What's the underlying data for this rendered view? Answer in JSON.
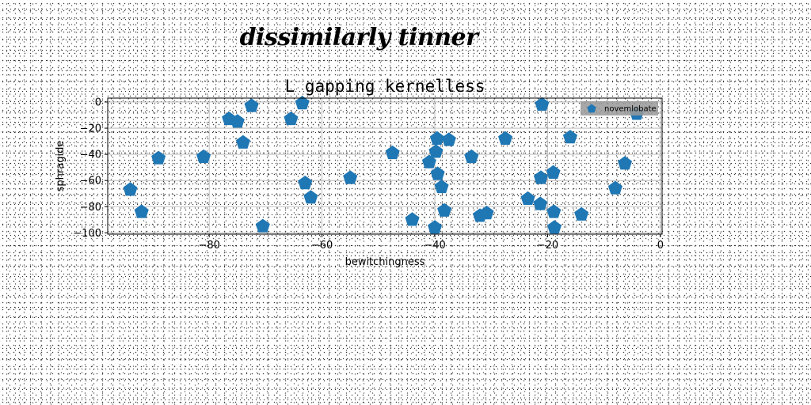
{
  "suptitle": "dissimilarly tinner",
  "chart_data": {
    "type": "scatter",
    "title": "L gapping kernelless",
    "xlabel": "bewitchingness",
    "ylabel": "sphragide",
    "xlim": [
      -98,
      0.3
    ],
    "ylim": [
      -101,
      3
    ],
    "xticks": [
      -80,
      -60,
      -40,
      -20,
      0
    ],
    "yticks": [
      0,
      -20,
      -40,
      -60,
      -80,
      -100
    ],
    "grid": true,
    "marker": "pentagon",
    "legend_position": "top-right",
    "series": [
      {
        "name": "novemlobate",
        "color": "#1f77b4",
        "points": [
          {
            "x": -94,
            "y": -67
          },
          {
            "x": -92,
            "y": -84
          },
          {
            "x": -89,
            "y": -43
          },
          {
            "x": -81,
            "y": -42
          },
          {
            "x": -76.5,
            "y": -13
          },
          {
            "x": -75,
            "y": -15
          },
          {
            "x": -74,
            "y": -31
          },
          {
            "x": -72.5,
            "y": -3
          },
          {
            "x": -70.5,
            "y": -95
          },
          {
            "x": -65.5,
            "y": -13
          },
          {
            "x": -63.5,
            "y": -1
          },
          {
            "x": -63,
            "y": -62
          },
          {
            "x": -62,
            "y": -73
          },
          {
            "x": -55,
            "y": -58
          },
          {
            "x": -47.5,
            "y": -39
          },
          {
            "x": -44,
            "y": -90
          },
          {
            "x": -41,
            "y": -46
          },
          {
            "x": -40,
            "y": -96
          },
          {
            "x": -39.8,
            "y": -38
          },
          {
            "x": -39.6,
            "y": -28
          },
          {
            "x": -39.5,
            "y": -55
          },
          {
            "x": -38.8,
            "y": -65
          },
          {
            "x": -38.3,
            "y": -83
          },
          {
            "x": -37.5,
            "y": -29
          },
          {
            "x": -33.5,
            "y": -42
          },
          {
            "x": -32,
            "y": -87
          },
          {
            "x": -30.8,
            "y": -85
          },
          {
            "x": -27.5,
            "y": -28
          },
          {
            "x": -23.5,
            "y": -74
          },
          {
            "x": -21.3,
            "y": -78
          },
          {
            "x": -21.2,
            "y": -58
          },
          {
            "x": -21,
            "y": -2
          },
          {
            "x": -19,
            "y": -54
          },
          {
            "x": -18.9,
            "y": -84
          },
          {
            "x": -18.8,
            "y": -96
          },
          {
            "x": -16,
            "y": -27
          },
          {
            "x": -14,
            "y": -86
          },
          {
            "x": -8,
            "y": -66
          },
          {
            "x": -6.3,
            "y": -47
          },
          {
            "x": -4.2,
            "y": -9
          }
        ]
      }
    ]
  }
}
